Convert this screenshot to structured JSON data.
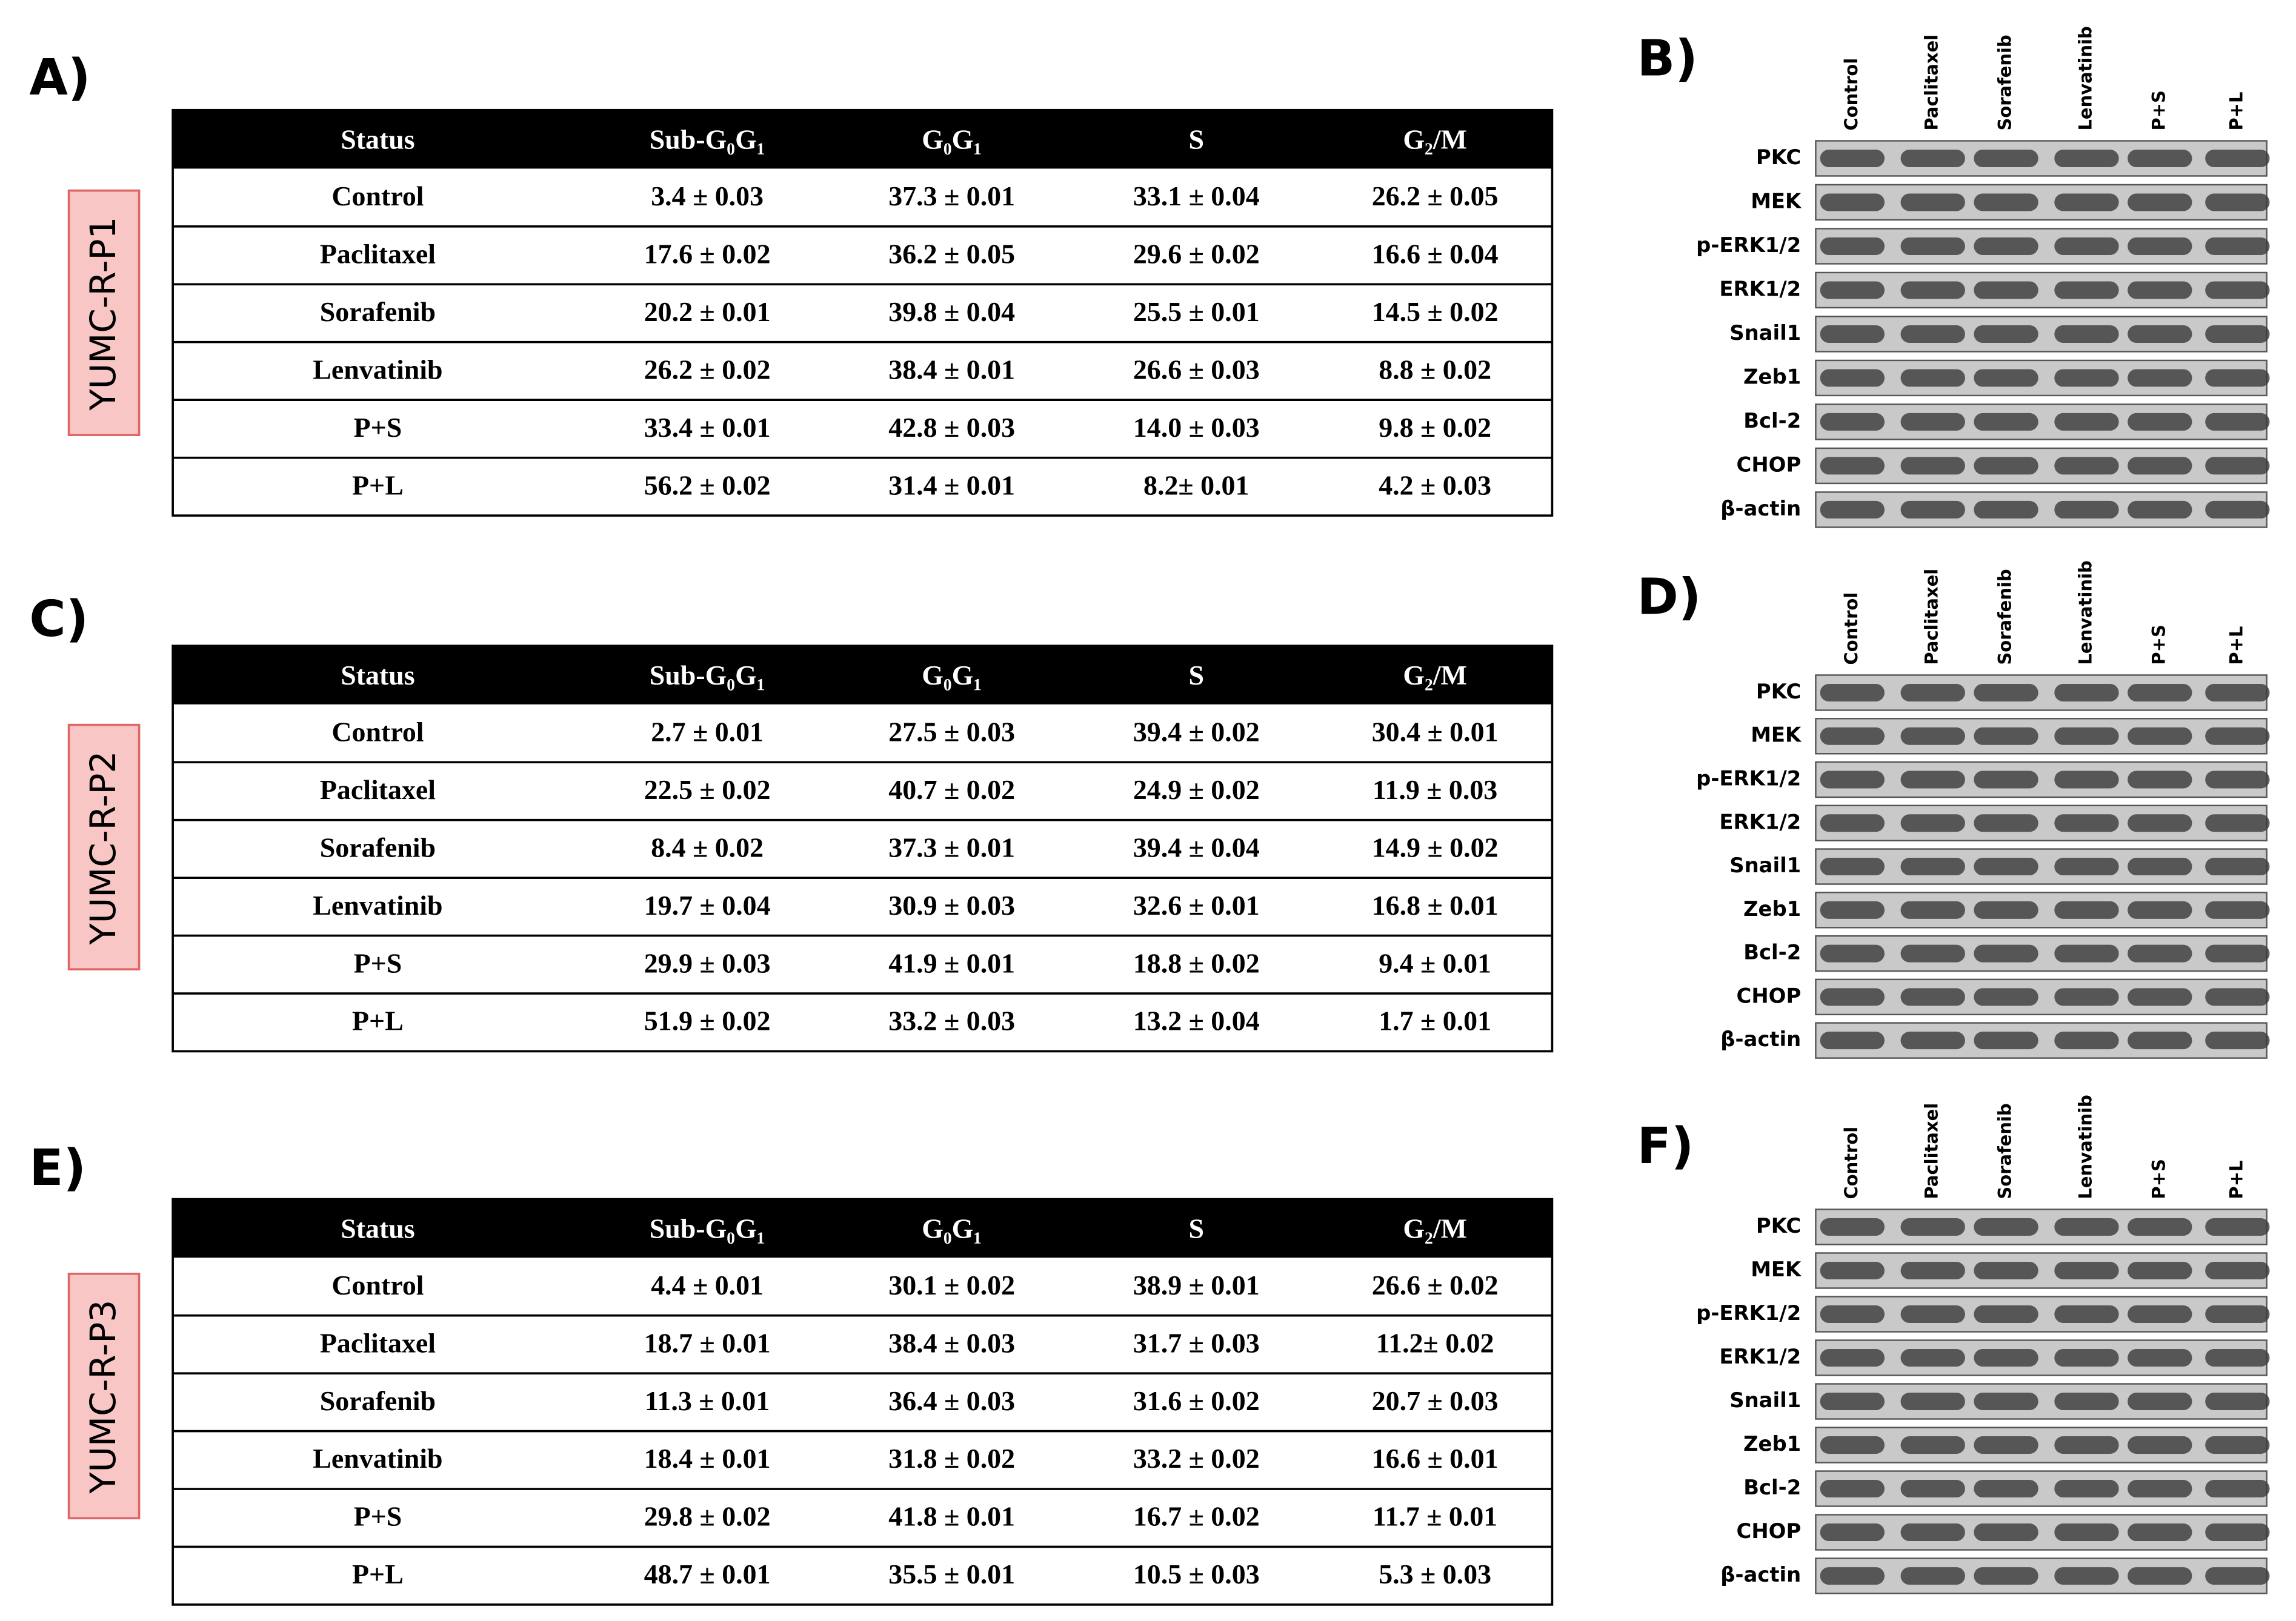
{
  "panels": [
    {
      "label": "A)",
      "cell_line": "YUMC-R-P1",
      "table": {
        "header": [
          "Status",
          "Sub-G₀G₁",
          "G₀G₁",
          "S",
          "G₂/M"
        ],
        "rows": [
          [
            "Control",
            "3.4 ± 0.03",
            "37.3 ± 0.01",
            "33.1 ± 0.04",
            "26.2 ± 0.05"
          ],
          [
            "Paclitaxel",
            "17.6 ± 0.02",
            "36.2 ± 0.05",
            "29.6 ± 0.02",
            "16.6 ± 0.04"
          ],
          [
            "Sorafenib",
            "20.2 ± 0.01",
            "39.8 ± 0.04",
            "25.5 ± 0.01",
            "14.5 ± 0.02"
          ],
          [
            "Lenvatinib",
            "26.2 ± 0.02",
            "38.4 ± 0.01",
            "26.6 ± 0.03",
            "8.8 ± 0.02"
          ],
          [
            "P+S",
            "33.4 ± 0.01",
            "42.8 ± 0.03",
            "14.0 ± 0.03",
            "9.8 ± 0.02"
          ],
          [
            "P+L",
            "56.2 ± 0.02",
            "31.4 ± 0.01",
            "8.2± 0.01",
            "4.2 ± 0.03"
          ]
        ]
      }
    },
    {
      "label": "C)",
      "cell_line": "YUMC-R-P2",
      "table": {
        "header": [
          "Status",
          "Sub-G₀G₁",
          "G₀G₁",
          "S",
          "G₂/M"
        ],
        "rows": [
          [
            "Control",
            "2.7 ± 0.01",
            "27.5 ± 0.03",
            "39.4 ± 0.02",
            "30.4 ± 0.01"
          ],
          [
            "Paclitaxel",
            "22.5 ± 0.02",
            "40.7 ± 0.02",
            "24.9 ± 0.02",
            "11.9 ± 0.03"
          ],
          [
            "Sorafenib",
            "8.4 ± 0.02",
            "37.3 ± 0.01",
            "39.4 ± 0.04",
            "14.9 ± 0.02"
          ],
          [
            "Lenvatinib",
            "19.7 ± 0.04",
            "30.9 ± 0.03",
            "32.6 ± 0.01",
            "16.8 ± 0.01"
          ],
          [
            "P+S",
            "29.9 ± 0.03",
            "41.9 ± 0.01",
            "18.8 ± 0.02",
            "9.4 ± 0.01"
          ],
          [
            "P+L",
            "51.9 ± 0.02",
            "33.2 ± 0.03",
            "13.2 ± 0.04",
            "1.7 ± 0.01"
          ]
        ]
      }
    },
    {
      "label": "E)",
      "cell_line": "YUMC-R-P3",
      "table": {
        "header": [
          "Status",
          "Sub-G₀G₁",
          "G₀G₁",
          "S",
          "G₂/M"
        ],
        "rows": [
          [
            "Control",
            "4.4 ± 0.01",
            "30.1 ± 0.02",
            "38.9 ± 0.01",
            "26.6 ± 0.02"
          ],
          [
            "Paclitaxel",
            "18.7 ± 0.01",
            "38.4 ± 0.03",
            "31.7 ± 0.03",
            "11.2± 0.02"
          ],
          [
            "Sorafenib",
            "11.3 ± 0.01",
            "36.4 ± 0.03",
            "31.6 ± 0.02",
            "20.7 ± 0.03"
          ],
          [
            "Lenvatinib",
            "18.4 ± 0.01",
            "31.8 ± 0.02",
            "33.2 ± 0.02",
            "16.6 ± 0.01"
          ],
          [
            "P+S",
            "29.8 ± 0.02",
            "41.8 ± 0.01",
            "16.7 ± 0.02",
            "11.7 ± 0.01"
          ],
          [
            "P+L",
            "48.7 ± 0.01",
            "35.5 ± 0.01",
            "10.5 ± 0.03",
            "5.3 ± 0.03"
          ]
        ]
      }
    }
  ],
  "blots": [
    {
      "label": "B)",
      "lanes": [
        "Control",
        "Paclitaxel",
        "Sorafenib",
        "Lenvatinib",
        "P+S",
        "P+L"
      ],
      "proteins": [
        "PKC",
        "MEK",
        "p-ERK1/2",
        "ERK1/2",
        "Snail1",
        "Zeb1",
        "Bcl-2",
        "CHOP",
        "β-actin"
      ]
    },
    {
      "label": "D)",
      "lanes": [
        "Control",
        "Paclitaxel",
        "Sorafenib",
        "Lenvatinib",
        "P+S",
        "P+L"
      ],
      "proteins": [
        "PKC",
        "MEK",
        "p-ERK1/2",
        "ERK1/2",
        "Snail1",
        "Zeb1",
        "Bcl-2",
        "CHOP",
        "β-actin"
      ]
    },
    {
      "label": "F)",
      "lanes": [
        "Control",
        "Paclitaxel",
        "Sorafenib",
        "Lenvatinib",
        "P+S",
        "P+L"
      ],
      "proteins": [
        "PKC",
        "MEK",
        "p-ERK1/2",
        "ERK1/2",
        "Snail1",
        "Zeb1",
        "Bcl-2",
        "CHOP",
        "β-actin"
      ]
    }
  ]
}
